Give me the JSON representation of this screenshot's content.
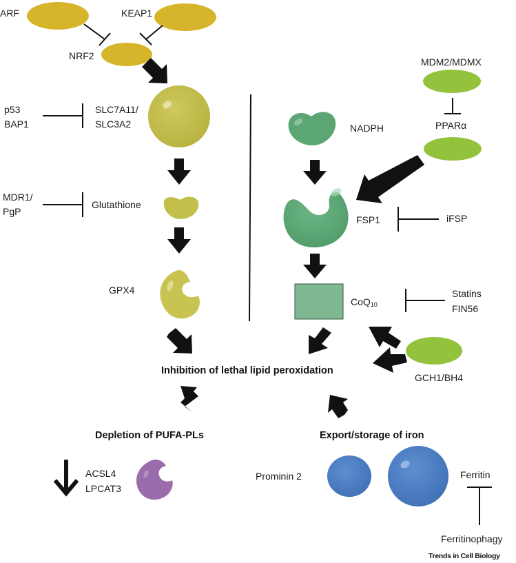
{
  "colors": {
    "nrf_yellow": "#d7b52b",
    "glutathione_pathway": "#c2c04a",
    "fsp1_green": "#5ba673",
    "ppar_lime": "#93c23c",
    "acsl_purple": "#9b6cab",
    "iron_blue": "#4d7ec3",
    "ink": "#111111"
  },
  "left": {
    "arf": "ARF",
    "keap1": "KEAP1",
    "nrf2": "NRF2",
    "p53": "p53",
    "bap1": "BAP1",
    "slc7a11": "SLC7A11/",
    "slc3a2": "SLC3A2",
    "mdr1": "MDR1/",
    "pgp": "PgP",
    "glutathione": "Glutathione",
    "gpx4": "GPX4"
  },
  "right": {
    "mdm2": "MDM2/MDMX",
    "ppar": "PPARα",
    "nadph": "NADPH",
    "fsp1": "FSP1",
    "ifsp": "iFSP",
    "coq": "CoQ",
    "coq_sub": "10",
    "statins": "Statins",
    "fin56": "FIN56",
    "gch1": "GCH1/BH4"
  },
  "center": {
    "outcome": "Inhibition of lethal lipid peroxidation"
  },
  "bottom_left": {
    "title": "Depletion of PUFA-PLs",
    "acsl4": "ACSL4",
    "lpcat3": "LPCAT3"
  },
  "bottom_right": {
    "title": "Export/storage of iron",
    "prominin": "Prominin 2",
    "ferritin": "Ferritin",
    "ferritinophagy": "Ferritinophagy"
  },
  "footer": "Trends in Cell Biology"
}
